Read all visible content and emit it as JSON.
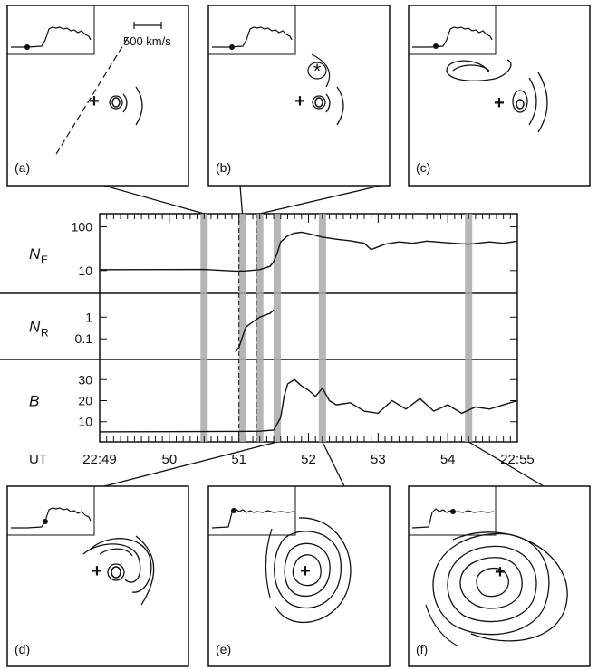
{
  "chart_data": {
    "type": "line",
    "x_axis": {
      "label": "UT",
      "range_minutes": [
        49,
        55
      ],
      "ticks": [
        {
          "value": 49,
          "label": "22:49"
        },
        {
          "value": 50,
          "label": "50"
        },
        {
          "value": 51,
          "label": "51"
        },
        {
          "value": 52,
          "label": "52"
        },
        {
          "value": 53,
          "label": "53"
        },
        {
          "value": 54,
          "label": "54"
        },
        {
          "value": 55,
          "label": "22:55"
        }
      ]
    },
    "panels": [
      {
        "label_main": "N",
        "label_sub": "E",
        "scale": "log",
        "range": [
          4,
          150
        ],
        "ticks": [
          {
            "value": 10,
            "label": "10"
          },
          {
            "value": 100,
            "label": "100"
          }
        ],
        "series": {
          "x": [
            49.0,
            50.5,
            50.95,
            51.1,
            51.3,
            51.45,
            51.5,
            51.55,
            51.6,
            51.7,
            51.8,
            51.9,
            52.0,
            52.2,
            52.4,
            52.6,
            52.8,
            52.9,
            53.1,
            53.3,
            53.5,
            53.7,
            54.0,
            54.3,
            54.6,
            54.8,
            55.0
          ],
          "y": [
            10.5,
            10.6,
            9.7,
            9.8,
            10.5,
            12.5,
            16,
            25,
            45,
            62,
            72,
            75,
            70,
            58,
            52,
            48,
            42,
            30,
            40,
            45,
            42,
            47,
            43,
            40,
            45,
            42,
            47
          ]
        }
      },
      {
        "label_main": "N",
        "label_sub": "R",
        "scale": "log",
        "range": [
          0.02,
          7
        ],
        "ticks": [
          {
            "value": 1,
            "label": "1"
          },
          {
            "value": 0.1,
            "label": "0.1"
          }
        ],
        "series": {
          "x": [
            50.95,
            51.0,
            51.05,
            51.1,
            51.2,
            51.3,
            51.45,
            51.5
          ],
          "y": [
            0.025,
            0.04,
            0.12,
            0.35,
            0.6,
            1.0,
            1.5,
            2.2
          ]
        }
      },
      {
        "label_main": "B",
        "label_sub": "",
        "scale": "linear",
        "range": [
          3,
          37
        ],
        "ticks": [
          {
            "value": 30,
            "label": "30"
          },
          {
            "value": 20,
            "label": "20"
          },
          {
            "value": 10,
            "label": "10"
          }
        ],
        "series": {
          "x": [
            49.0,
            50.0,
            51.0,
            51.3,
            51.5,
            51.6,
            51.65,
            51.7,
            51.8,
            51.9,
            52.0,
            52.1,
            52.2,
            52.3,
            52.4,
            52.6,
            52.8,
            53.0,
            53.2,
            53.4,
            53.6,
            53.8,
            54.0,
            54.2,
            54.4,
            54.6,
            54.8,
            55.0
          ],
          "y": [
            5.2,
            5.3,
            5.4,
            5.5,
            6,
            12,
            22,
            28,
            30,
            27,
            25,
            22,
            26,
            20,
            18,
            19,
            15,
            14,
            20,
            16,
            21,
            15,
            18,
            14,
            17,
            16,
            18,
            20
          ]
        }
      }
    ],
    "markers": {
      "gray_bands": [
        50.5,
        51.05,
        51.3,
        51.55,
        52.2,
        54.3
      ],
      "dashed_lines": [
        51.0,
        51.25
      ]
    },
    "insets": [
      {
        "label": "(a)",
        "time": 50.5,
        "scale_label": "500 km/s"
      },
      {
        "label": "(b)",
        "time": 51.05
      },
      {
        "label": "(c)",
        "time": 51.3
      },
      {
        "label": "(d)",
        "time": 51.55
      },
      {
        "label": "(e)",
        "time": 52.2
      },
      {
        "label": "(f)",
        "time": 54.3
      }
    ]
  }
}
